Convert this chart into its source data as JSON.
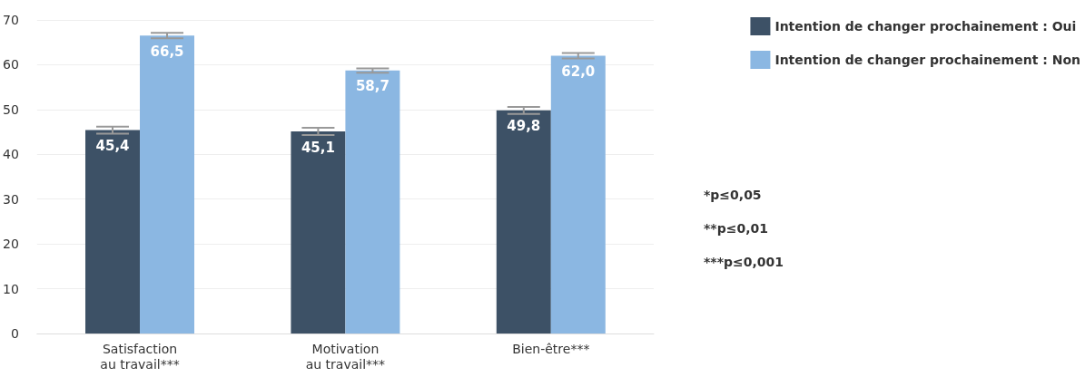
{
  "chart_data": {
    "type": "bar",
    "categories": [
      "Satisfaction\nau travail***",
      "Motivation\nau travail***",
      "Bien-être***"
    ],
    "series": [
      {
        "name": "Intention de changer prochainement : Oui",
        "color": "#3d5166",
        "values": [
          45.4,
          45.1,
          49.8
        ],
        "value_labels": [
          "45,4",
          "45,1",
          "49,8"
        ],
        "errors": [
          0.8,
          0.8,
          0.8
        ]
      },
      {
        "name": "Intention de changer prochainement : Non",
        "color": "#8bb7e2",
        "values": [
          66.5,
          58.7,
          62.0
        ],
        "value_labels": [
          "66,5",
          "58,7",
          "62,0"
        ],
        "errors": [
          0.6,
          0.5,
          0.6
        ]
      }
    ],
    "ylim": [
      0,
      70
    ],
    "yticks": [
      0,
      10,
      20,
      30,
      40,
      50,
      60,
      70
    ],
    "grid": "y",
    "legend": "top right",
    "annotations": [
      "*p≤0,05",
      "**p≤0,01",
      "***p≤0,001"
    ]
  }
}
